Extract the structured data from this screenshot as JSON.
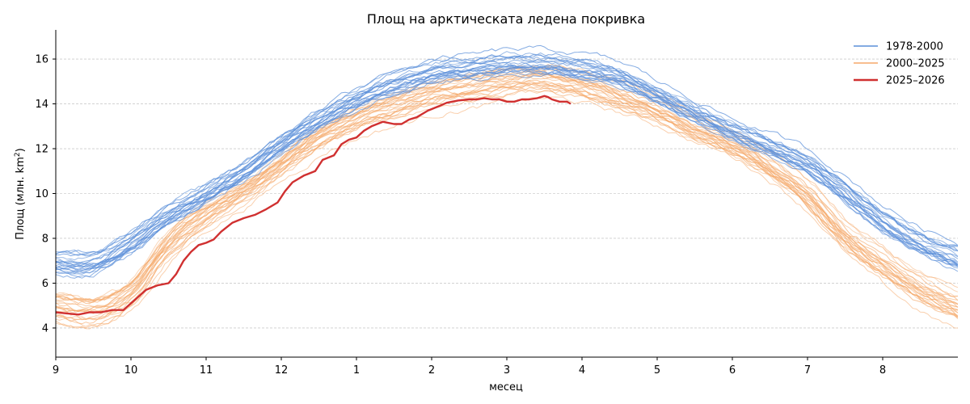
{
  "chart_data": {
    "type": "line",
    "title": "Площ на арктическата ледена покривка",
    "xlabel": "месец",
    "ylabel_main": "Площ (млн. km",
    "ylabel_sup": "2",
    "ylabel_close": ")",
    "x_ticks": [
      {
        "value": 0,
        "label": "9"
      },
      {
        "value": 1,
        "label": "10"
      },
      {
        "value": 2,
        "label": "11"
      },
      {
        "value": 3,
        "label": "12"
      },
      {
        "value": 4,
        "label": "1"
      },
      {
        "value": 5,
        "label": "2"
      },
      {
        "value": 6,
        "label": "3"
      },
      {
        "value": 7,
        "label": "4"
      },
      {
        "value": 8,
        "label": "5"
      },
      {
        "value": 9,
        "label": "6"
      },
      {
        "value": 10,
        "label": "7"
      },
      {
        "value": 11,
        "label": "8"
      }
    ],
    "y_ticks": [
      4,
      6,
      8,
      10,
      12,
      14,
      16
    ],
    "xlim": [
      0,
      12
    ],
    "ylim": [
      2.7,
      17.3
    ],
    "grid": "horizontal dashed",
    "legend_position": "top-right",
    "series": [
      {
        "name": "1978-2000",
        "color": "#5b8fd9",
        "description": "~22 seasons, individual thin lines",
        "envelope_mean": [
          [
            0,
            6.9
          ],
          [
            0.5,
            6.9
          ],
          [
            1,
            7.8
          ],
          [
            1.5,
            9.0
          ],
          [
            2,
            10.0
          ],
          [
            2.5,
            11.0
          ],
          [
            3,
            12.2
          ],
          [
            3.5,
            13.3
          ],
          [
            4,
            14.2
          ],
          [
            4.5,
            14.9
          ],
          [
            5,
            15.4
          ],
          [
            5.5,
            15.6
          ],
          [
            6,
            15.8
          ],
          [
            6.5,
            15.8
          ],
          [
            7,
            15.6
          ],
          [
            7.5,
            15.2
          ],
          [
            8,
            14.4
          ],
          [
            8.5,
            13.6
          ],
          [
            9,
            12.8
          ],
          [
            9.5,
            12.1
          ],
          [
            10,
            11.3
          ],
          [
            10.5,
            10.1
          ],
          [
            11,
            8.8
          ],
          [
            11.5,
            7.8
          ],
          [
            12,
            7.1
          ]
        ]
      },
      {
        "name": "2000–2025",
        "color": "#f5a96a",
        "description": "~25 seasons, individual thin lines",
        "envelope_mean": [
          [
            0,
            4.9
          ],
          [
            0.5,
            4.7
          ],
          [
            1,
            5.5
          ],
          [
            1.5,
            7.6
          ],
          [
            2,
            9.0
          ],
          [
            2.5,
            10.0
          ],
          [
            3,
            11.2
          ],
          [
            3.5,
            12.4
          ],
          [
            4,
            13.2
          ],
          [
            4.5,
            13.8
          ],
          [
            5,
            14.3
          ],
          [
            5.5,
            14.6
          ],
          [
            6,
            14.9
          ],
          [
            6.5,
            15.0
          ],
          [
            7,
            14.7
          ],
          [
            7.5,
            14.2
          ],
          [
            8,
            13.6
          ],
          [
            8.5,
            12.8
          ],
          [
            9,
            12.1
          ],
          [
            9.5,
            11.1
          ],
          [
            10,
            9.8
          ],
          [
            10.5,
            8.0
          ],
          [
            11,
            6.7
          ],
          [
            11.5,
            5.6
          ],
          [
            12,
            4.8
          ]
        ]
      },
      {
        "name": "2025–2026",
        "color": "#d03030",
        "points": [
          [
            0,
            4.7
          ],
          [
            0.15,
            4.65
          ],
          [
            0.3,
            4.6
          ],
          [
            0.45,
            4.7
          ],
          [
            0.6,
            4.7
          ],
          [
            0.75,
            4.8
          ],
          [
            0.9,
            4.8
          ],
          [
            1.0,
            5.1
          ],
          [
            1.1,
            5.4
          ],
          [
            1.2,
            5.7
          ],
          [
            1.35,
            5.9
          ],
          [
            1.5,
            6.0
          ],
          [
            1.6,
            6.4
          ],
          [
            1.7,
            7.0
          ],
          [
            1.8,
            7.4
          ],
          [
            1.9,
            7.7
          ],
          [
            2.0,
            7.8
          ],
          [
            2.1,
            7.95
          ],
          [
            2.2,
            8.3
          ],
          [
            2.35,
            8.7
          ],
          [
            2.5,
            8.9
          ],
          [
            2.65,
            9.05
          ],
          [
            2.8,
            9.3
          ],
          [
            2.95,
            9.6
          ],
          [
            3.05,
            10.1
          ],
          [
            3.15,
            10.5
          ],
          [
            3.3,
            10.8
          ],
          [
            3.45,
            11.0
          ],
          [
            3.55,
            11.5
          ],
          [
            3.7,
            11.7
          ],
          [
            3.8,
            12.2
          ],
          [
            3.9,
            12.4
          ],
          [
            4.0,
            12.5
          ],
          [
            4.1,
            12.8
          ],
          [
            4.2,
            13.0
          ],
          [
            4.35,
            13.2
          ],
          [
            4.5,
            13.1
          ],
          [
            4.6,
            13.1
          ],
          [
            4.7,
            13.3
          ],
          [
            4.8,
            13.4
          ],
          [
            4.95,
            13.7
          ],
          [
            5.1,
            13.9
          ],
          [
            5.2,
            14.05
          ],
          [
            5.35,
            14.15
          ],
          [
            5.5,
            14.2
          ],
          [
            5.6,
            14.2
          ],
          [
            5.7,
            14.25
          ],
          [
            5.8,
            14.2
          ],
          [
            5.9,
            14.2
          ],
          [
            6.0,
            14.1
          ],
          [
            6.1,
            14.1
          ],
          [
            6.2,
            14.2
          ],
          [
            6.3,
            14.2
          ],
          [
            6.4,
            14.25
          ],
          [
            6.5,
            14.35
          ],
          [
            6.55,
            14.3
          ],
          [
            6.6,
            14.2
          ],
          [
            6.7,
            14.1
          ],
          [
            6.8,
            14.1
          ],
          [
            6.85,
            14.0
          ]
        ]
      }
    ]
  }
}
